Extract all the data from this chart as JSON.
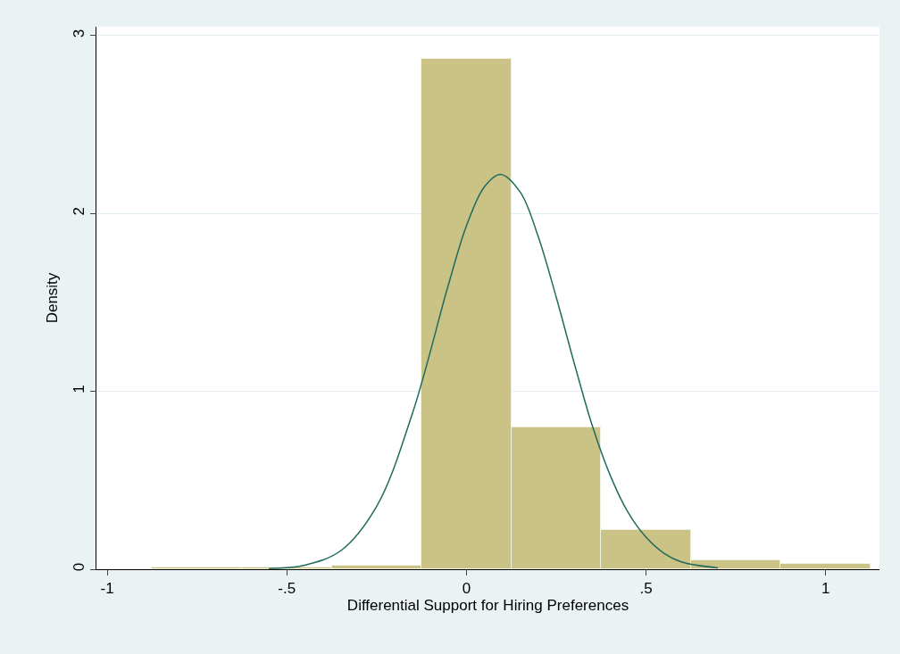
{
  "chart_data": {
    "type": "histogram",
    "xlabel": "Differential Support for Hiring Preferences",
    "ylabel": "Density",
    "bins": [
      -0.875,
      -0.625,
      -0.375,
      -0.125,
      0.125,
      0.375,
      0.625,
      0.875,
      1.125
    ],
    "values": [
      0.01,
      0.01,
      0.02,
      2.87,
      0.8,
      0.22,
      0.05,
      0.03
    ],
    "color": "#cbc385",
    "series": [
      {
        "type": "line",
        "color": "#1f6b5f",
        "x": [
          -0.55,
          -0.45,
          -0.35,
          -0.25,
          -0.15,
          -0.05,
          0,
          0.05,
          0.095,
          0.15,
          0.2,
          0.25,
          0.3,
          0.35,
          0.4,
          0.45,
          0.5,
          0.55,
          0.6,
          0.7
        ],
        "values": [
          0.004,
          0.023,
          0.104,
          0.353,
          0.878,
          1.6,
          1.93,
          2.15,
          2.22,
          2.12,
          1.87,
          1.53,
          1.16,
          0.81,
          0.53,
          0.32,
          0.18,
          0.09,
          0.04,
          0.008
        ]
      }
    ],
    "xlim": [
      -1.03,
      1.15
    ],
    "ylim": [
      0,
      3.05
    ],
    "xticks": [
      {
        "value": -1,
        "label": "-1"
      },
      {
        "value": -0.5,
        "label": "-.5"
      },
      0,
      {
        "value": 0.5,
        "label": ".5"
      },
      1
    ],
    "yticks": [
      0,
      1,
      2,
      3
    ],
    "grid": "y"
  }
}
